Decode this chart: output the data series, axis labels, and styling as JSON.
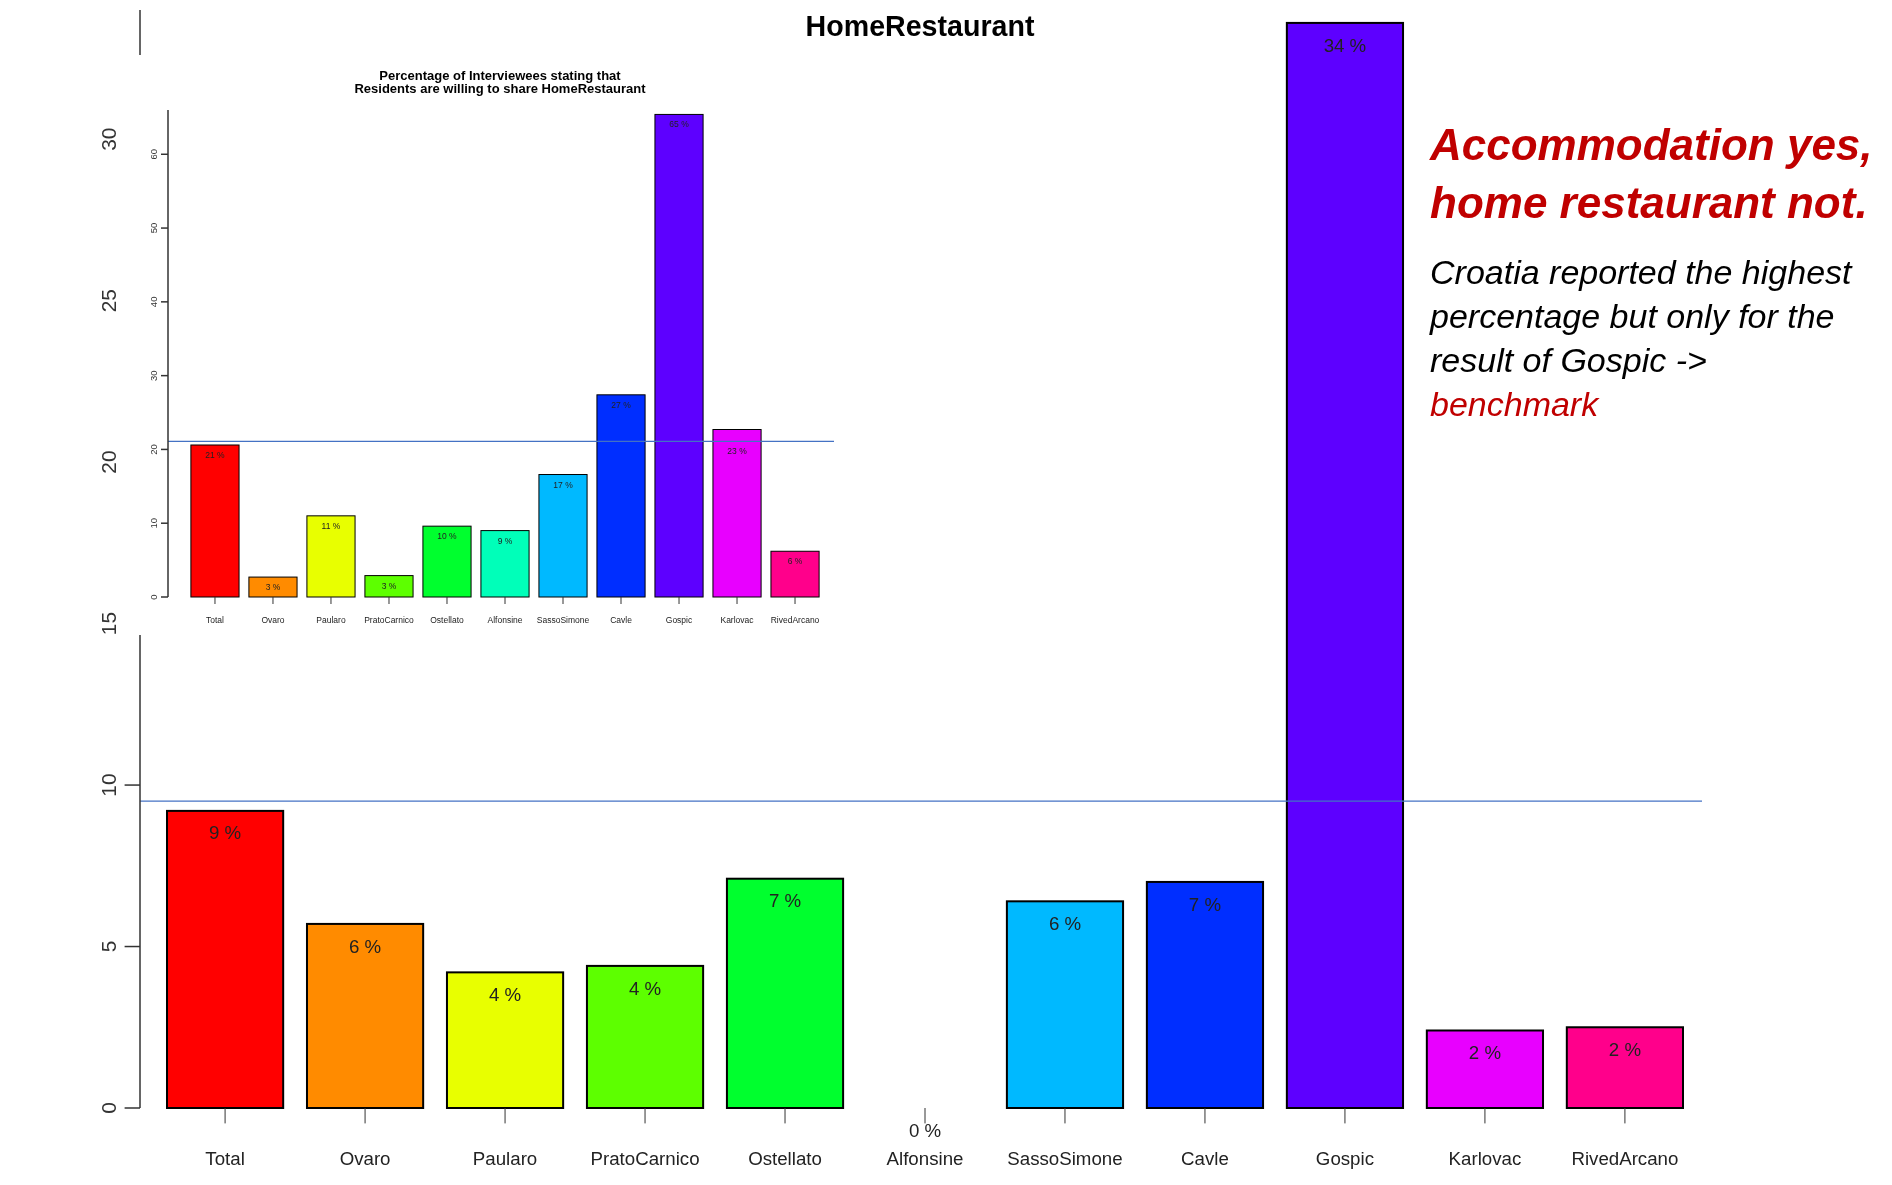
{
  "chart_data": [
    {
      "type": "bar",
      "title": "HomeRestaurant",
      "categories": [
        "Total",
        "Ovaro",
        "Paularo",
        "PratoCarnico",
        "Ostellato",
        "Alfonsine",
        "SassoSimone",
        "Cavle",
        "Gospic",
        "Karlovac",
        "RivedArcano"
      ],
      "values": [
        9.2,
        5.7,
        4.2,
        4.4,
        7.1,
        0,
        6.4,
        7.0,
        33.6,
        2.4,
        2.5
      ],
      "colors": [
        "#ff0000",
        "#ff8b00",
        "#e8ff00",
        "#5dff00",
        "#00ff2e",
        "#00ffb9",
        "#00b9ff",
        "#002eff",
        "#5d00ff",
        "#e800ff",
        "#ff008b"
      ],
      "value_labels": [
        "9 %",
        "6 %",
        "4 %",
        "4 %",
        "7 %",
        "0 %",
        "6 %",
        "7 %",
        "34 %",
        "2 %",
        "2 %"
      ],
      "ylim": [
        0,
        34
      ],
      "yticks": [
        0,
        5,
        10,
        15,
        20,
        25,
        30
      ],
      "ref_lines": [
        {
          "axis": "y",
          "value": 9.5,
          "color": "#4472c4"
        }
      ],
      "annotations": [
        "Accommodation yes, home restaurant not.",
        "Croatia reported the highest percentage but only for the result of Gospic ->",
        "benchmark"
      ]
    },
    {
      "type": "bar",
      "title": "Percentage of Interviewees stating that Residents are willing to share HomeRestaurant",
      "categories": [
        "Total",
        "Ovaro",
        "Paularo",
        "PratoCarnico",
        "Ostellato",
        "Alfonsine",
        "SassoSimone",
        "Cavle",
        "Gospic",
        "Karlovac",
        "RivedArcano"
      ],
      "values": [
        20.6,
        2.7,
        11.0,
        2.9,
        9.6,
        9.0,
        16.6,
        27.4,
        65.4,
        22.7,
        6.2
      ],
      "colors": [
        "#ff0000",
        "#ff8b00",
        "#e8ff00",
        "#5dff00",
        "#00ff2e",
        "#00ffb9",
        "#00b9ff",
        "#002eff",
        "#5d00ff",
        "#e800ff",
        "#ff008b"
      ],
      "value_labels": [
        "21 %",
        "3 %",
        "11 %",
        "3 %",
        "10 %",
        "9 %",
        "17 %",
        "27 %",
        "65 %",
        "23 %",
        "6 %"
      ],
      "ylim": [
        0,
        66
      ],
      "yticks": [
        0,
        10,
        20,
        30,
        40,
        50,
        60
      ],
      "ref_lines": [
        {
          "axis": "y",
          "value": 21.1,
          "color": "#4472c4"
        }
      ]
    }
  ]
}
